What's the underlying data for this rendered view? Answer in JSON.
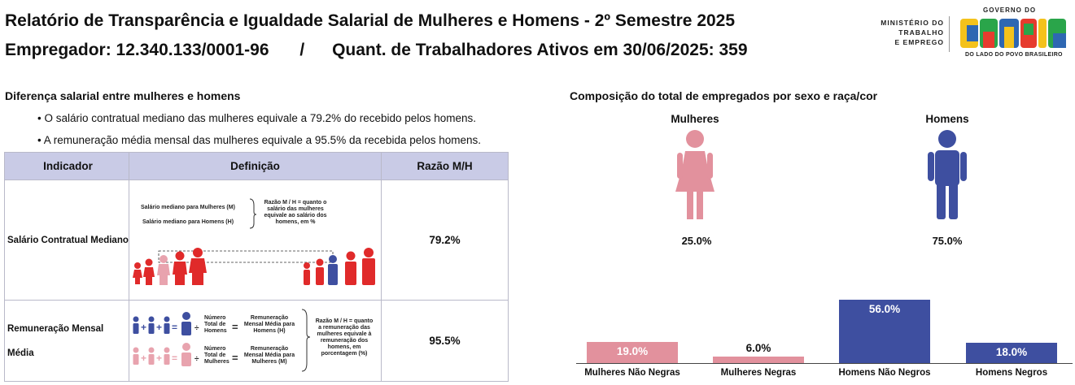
{
  "header": {
    "title": "Relatório de Transparência e Igualdade Salarial de Mulheres e Homens - 2º Semestre 2025",
    "employer": "Empregador: 12.340.133/0001-96",
    "separator": "/",
    "workers": "Quant. de Trabalhadores Ativos em 30/06/2025: 359"
  },
  "logo": {
    "ministry_lines": [
      "MINISTÉRIO DO",
      "TRABALHO",
      "E EMPREGO"
    ],
    "gov_label": "GOVERNO DO",
    "brand": "BRASIL",
    "tagline": "DO LADO DO POVO BRASILEIRO"
  },
  "salary_section": {
    "title": "Diferença salarial entre mulheres e homens",
    "bullets": [
      "• O salário contratual mediano das mulheres equivale a 79.2% do recebido pelos homens.",
      "• A remuneração média mensal das mulheres equivale a 95.5% da recebida pelos homens."
    ],
    "table": {
      "headers": [
        "Indicador",
        "Definição",
        "Razão M/H"
      ],
      "rows": [
        {
          "indicator": "Salário Contratual Mediano",
          "ratio": "79.2%",
          "def_lines": [
            "Salário mediano para Mulheres (M)",
            "Salário mediano para Homens (H)"
          ],
          "def_note": [
            "Razão M / H = quanto o",
            "salário das mulheres",
            "equivale ao salário dos",
            "homens, em %"
          ]
        },
        {
          "indicator_lines": [
            "Remuneração Mensal",
            "Média"
          ],
          "ratio": "95.5%",
          "def_top": {
            "count": [
              "Número",
              "Total de",
              "Homens"
            ],
            "result": [
              "Remuneração",
              "Mensal Média para",
              "Homens (H)"
            ]
          },
          "def_bottom": {
            "count": [
              "Número",
              "Total de",
              "Mulheres"
            ],
            "result": [
              "Remuneração",
              "Mensal Média para",
              "Mulheres (M)"
            ]
          },
          "def_note": [
            "Razão M / H = quanto",
            "a remuneração das",
            "mulheres equivale à",
            "remuneração dos",
            "homens, em",
            "porcentagem (%)"
          ]
        }
      ]
    }
  },
  "composition_section": {
    "title": "Composição do total de empregados por sexo e raça/cor",
    "women": {
      "label": "Mulheres",
      "pct": "25.0%",
      "icon": "woman-icon"
    },
    "men": {
      "label": "Homens",
      "pct": "75.0%",
      "icon": "man-icon"
    }
  },
  "chart_data": {
    "type": "bar",
    "categories": [
      "Mulheres Não Negras",
      "Mulheres Negras",
      "Homens Não Negros",
      "Homens Negros"
    ],
    "values": [
      19.0,
      6.0,
      56.0,
      18.0
    ],
    "labels": [
      "19.0%",
      "6.0%",
      "56.0%",
      "18.0%"
    ],
    "colors": [
      "#e2919d",
      "#e2919d",
      "#3e4fa0",
      "#3e4fa0"
    ],
    "ylim": [
      0,
      56
    ]
  },
  "colors": {
    "pink": "#e2919d",
    "blue": "#3e4fa0",
    "red": "#e02a2a",
    "header_fill": "#c9cbe6"
  }
}
